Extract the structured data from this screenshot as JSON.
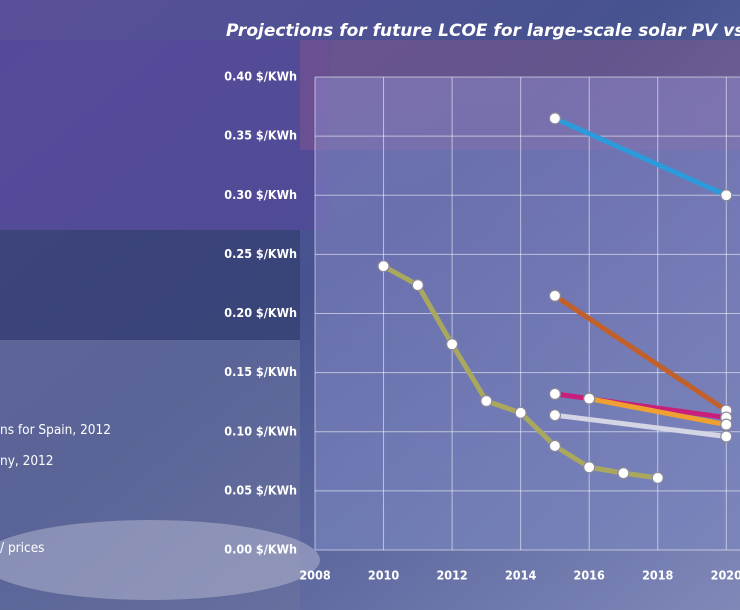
{
  "chart_data": {
    "type": "line",
    "title": "Projections for future LCOE for large-scale solar PV vs",
    "legend_texts": [
      "ns for Spain, 2012",
      "ny, 2012",
      "/ prices"
    ],
    "xlim": [
      2008,
      2020.4
    ],
    "xticks": [
      2008,
      2010,
      2012,
      2014,
      2016,
      2018,
      2020
    ],
    "ylim": [
      0,
      0.4
    ],
    "yticks": [
      {
        "value": 0,
        "label": "0.00 $/KWh"
      },
      {
        "value": 0.05,
        "label": "0.05 $/KWh"
      },
      {
        "value": 0.1,
        "label": "0.10 $/KWh"
      },
      {
        "value": 0.15,
        "label": "0.15 $/KWh"
      },
      {
        "value": 0.2,
        "label": "0.20 $/KWh"
      },
      {
        "value": 0.25,
        "label": "0.25 $/KWh"
      },
      {
        "value": 0.3,
        "label": "0.30 $/KWh"
      },
      {
        "value": 0.35,
        "label": "0.35 $/KWh"
      },
      {
        "value": 0.4,
        "label": "0.40 $/KWh"
      }
    ],
    "grid": true,
    "series": [
      {
        "color": "#a9a85e",
        "x": [
          2010,
          2011,
          2012,
          2013,
          2014,
          2015,
          2016,
          2017,
          2018
        ],
        "values": [
          0.24,
          0.224,
          0.174,
          0.126,
          0.116,
          0.088,
          0.07,
          0.065,
          0.061
        ]
      },
      {
        "color": "#2b9bdc",
        "x": [
          2015,
          2020
        ],
        "values": [
          0.365,
          0.3
        ]
      },
      {
        "color": "#c2602c",
        "x": [
          2015,
          2020
        ],
        "values": [
          0.215,
          0.118
        ]
      },
      {
        "color": "#c8207a",
        "x": [
          2015,
          2020
        ],
        "values": [
          0.132,
          0.112
        ]
      },
      {
        "color": "#f0a030",
        "x": [
          2016,
          2020
        ],
        "values": [
          0.128,
          0.106
        ]
      },
      {
        "color": "#d4d6e6",
        "x": [
          2015,
          2020
        ],
        "values": [
          0.114,
          0.096
        ]
      }
    ]
  }
}
